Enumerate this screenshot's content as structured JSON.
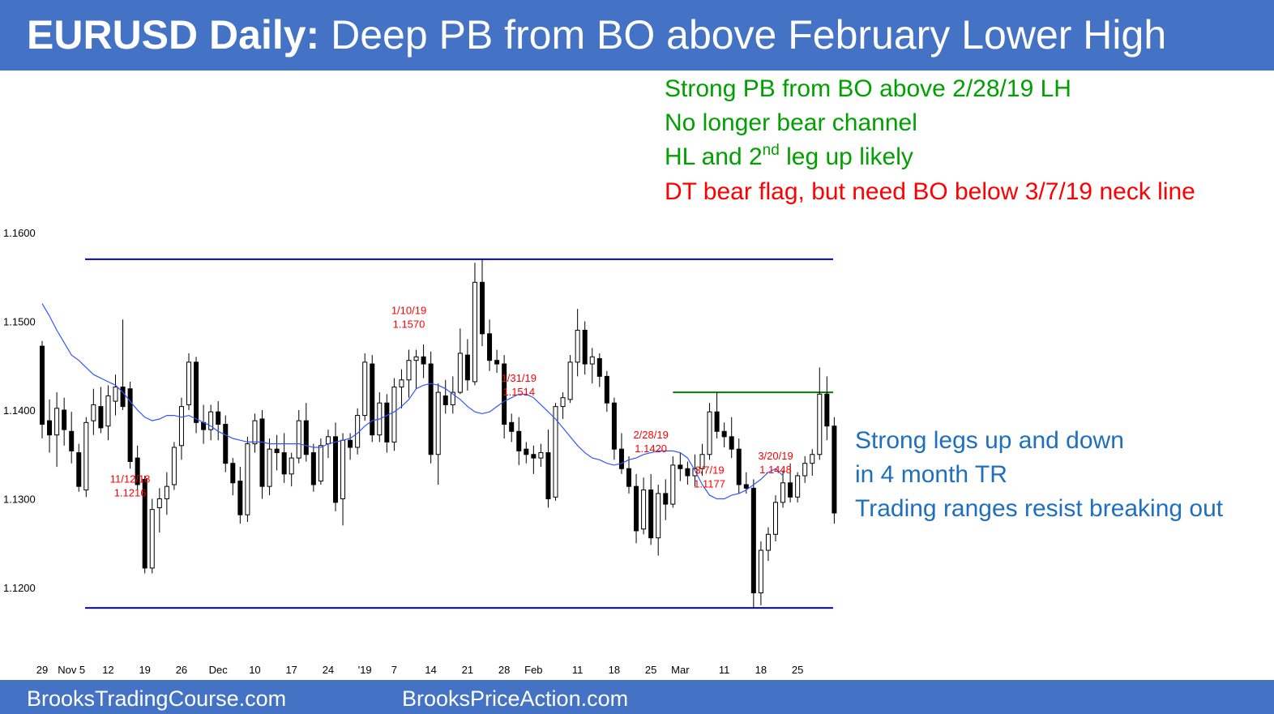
{
  "header": {
    "title_bold": "EURUSD Daily:",
    "title_rest": "Deep PB from BO above February Lower High"
  },
  "footer": {
    "left": "BrooksTradingCourse.com",
    "center": "BrooksPriceAction.com"
  },
  "notes": {
    "green": [
      "Strong PB from BO above 2/28/19 LH",
      "No longer bear channel"
    ],
    "green3_pre": "HL and 2",
    "green3_sup": "nd",
    "green3_post": " leg up likely",
    "red": "DT bear flag, but need BO below 3/7/19 neck line",
    "blue": [
      "Strong legs up and down",
      "in 4 month TR",
      "Trading ranges resist breaking out"
    ]
  },
  "colors": {
    "banner": "#4472c4",
    "range_line": "#0000e0",
    "lower_high_line": "#008000",
    "moving_average": "#3355ff",
    "label_red": "#ff0000",
    "note_green": "#00a000",
    "note_blue": "#1f6fc0"
  },
  "chart_data": {
    "type": "candlestick",
    "instrument": "EURUSD",
    "timeframe": "Daily",
    "ylim": [
      1.1165,
      1.162
    ],
    "y_ticks": [
      "1.1200",
      "1.1300",
      "1.1400",
      "1.1500",
      "1.1600"
    ],
    "x_tick_labels": [
      "29",
      "Nov 5",
      "12",
      "19",
      "26",
      "Dec",
      "10",
      "17",
      "24",
      "'19",
      "7",
      "14",
      "21",
      "28",
      "Feb",
      "11",
      "18",
      "25",
      "Mar",
      "11",
      "18",
      "25"
    ],
    "x_tick_positions": [
      0,
      4,
      9,
      14,
      19,
      24,
      29,
      34,
      39,
      44,
      48,
      53,
      58,
      63,
      67,
      73,
      78,
      83,
      87,
      93,
      98,
      103
    ],
    "horizontal_lines": [
      {
        "type": "range_top",
        "value": 1.157,
        "from_bar": 6,
        "to_bar": 105
      },
      {
        "type": "range_bottom",
        "value": 1.1177,
        "from_bar": 6,
        "to_bar": 105
      },
      {
        "type": "lower_high",
        "value": 1.142,
        "from_bar": 86,
        "to_bar": 105
      }
    ],
    "annotations": [
      {
        "date": "11/12/18",
        "price": "1.1216",
        "bar": 12
      },
      {
        "date": "1/10/19",
        "price": "1.1570",
        "bar": 50
      },
      {
        "date": "1/31/19",
        "price": "1.1514",
        "bar": 65
      },
      {
        "date": "2/28/19",
        "price": "1.1420",
        "bar": 83
      },
      {
        "date": "3/7/19",
        "price": "1.1177",
        "bar": 91
      },
      {
        "date": "3/20/19",
        "price": "1.1448",
        "bar": 100
      }
    ],
    "candles": [
      [
        1.1472,
        1.1478,
        1.1368,
        1.1384
      ],
      [
        1.1388,
        1.1412,
        1.1352,
        1.1372
      ],
      [
        1.1372,
        1.142,
        1.1336,
        1.1402
      ],
      [
        1.14,
        1.1414,
        1.136,
        1.1378
      ],
      [
        1.1376,
        1.1398,
        1.134,
        1.1354
      ],
      [
        1.1352,
        1.1362,
        1.1308,
        1.1314
      ],
      [
        1.131,
        1.1392,
        1.1302,
        1.1386
      ],
      [
        1.1388,
        1.1424,
        1.1372,
        1.1406
      ],
      [
        1.1404,
        1.1426,
        1.1374,
        1.138
      ],
      [
        1.1382,
        1.1428,
        1.1366,
        1.1416
      ],
      [
        1.141,
        1.144,
        1.1394,
        1.1426
      ],
      [
        1.1426,
        1.1502,
        1.14,
        1.1404
      ],
      [
        1.1424,
        1.1432,
        1.1334,
        1.1342
      ],
      [
        1.1346,
        1.136,
        1.131,
        1.1316
      ],
      [
        1.1322,
        1.1326,
        1.1216,
        1.1222
      ],
      [
        1.1222,
        1.13,
        1.1216,
        1.1288
      ],
      [
        1.129,
        1.1312,
        1.1262,
        1.13
      ],
      [
        1.13,
        1.133,
        1.1282,
        1.1314
      ],
      [
        1.1316,
        1.1364,
        1.131,
        1.1358
      ],
      [
        1.136,
        1.1414,
        1.1344,
        1.1404
      ],
      [
        1.1406,
        1.1464,
        1.14,
        1.1454
      ],
      [
        1.1454,
        1.146,
        1.1374,
        1.1386
      ],
      [
        1.1386,
        1.1406,
        1.1362,
        1.1378
      ],
      [
        1.1378,
        1.1406,
        1.1366,
        1.1398
      ],
      [
        1.1398,
        1.141,
        1.1366,
        1.1384
      ],
      [
        1.1384,
        1.1394,
        1.133,
        1.134
      ],
      [
        1.134,
        1.1346,
        1.1304,
        1.1318
      ],
      [
        1.132,
        1.1336,
        1.1272,
        1.1282
      ],
      [
        1.1282,
        1.137,
        1.1274,
        1.1362
      ],
      [
        1.1362,
        1.1396,
        1.1352,
        1.1388
      ],
      [
        1.139,
        1.14,
        1.13,
        1.1314
      ],
      [
        1.1314,
        1.1368,
        1.1304,
        1.1356
      ],
      [
        1.1356,
        1.1372,
        1.1332,
        1.1352
      ],
      [
        1.1352,
        1.1374,
        1.1318,
        1.1328
      ],
      [
        1.1328,
        1.1352,
        1.1314,
        1.1346
      ],
      [
        1.1346,
        1.14,
        1.134,
        1.1388
      ],
      [
        1.1388,
        1.1408,
        1.1342,
        1.135
      ],
      [
        1.1352,
        1.1362,
        1.1308,
        1.1316
      ],
      [
        1.132,
        1.1368,
        1.1316,
        1.136
      ],
      [
        1.1362,
        1.1378,
        1.1346,
        1.137
      ],
      [
        1.137,
        1.1386,
        1.1286,
        1.1296
      ],
      [
        1.13,
        1.1374,
        1.127,
        1.1366
      ],
      [
        1.1366,
        1.1374,
        1.1344,
        1.1358
      ],
      [
        1.1358,
        1.1402,
        1.135,
        1.1394
      ],
      [
        1.1394,
        1.1464,
        1.1388,
        1.1454
      ],
      [
        1.1452,
        1.1462,
        1.1364,
        1.1372
      ],
      [
        1.1372,
        1.142,
        1.1364,
        1.1408
      ],
      [
        1.1408,
        1.1418,
        1.1352,
        1.1364
      ],
      [
        1.1364,
        1.1436,
        1.1354,
        1.1426
      ],
      [
        1.1426,
        1.1446,
        1.1402,
        1.1434
      ],
      [
        1.1434,
        1.1468,
        1.1414,
        1.1456
      ],
      [
        1.1456,
        1.1468,
        1.1424,
        1.146
      ],
      [
        1.146,
        1.1474,
        1.1436,
        1.1452
      ],
      [
        1.1452,
        1.1466,
        1.134,
        1.135
      ],
      [
        1.135,
        1.143,
        1.1316,
        1.142
      ],
      [
        1.1416,
        1.1434,
        1.1396,
        1.1406
      ],
      [
        1.1406,
        1.1438,
        1.1396,
        1.142
      ],
      [
        1.142,
        1.1492,
        1.1418,
        1.1464
      ],
      [
        1.1462,
        1.148,
        1.1422,
        1.1434
      ],
      [
        1.1432,
        1.1566,
        1.1428,
        1.1544
      ],
      [
        1.1544,
        1.157,
        1.1472,
        1.1486
      ],
      [
        1.1486,
        1.1502,
        1.1444,
        1.1456
      ],
      [
        1.1456,
        1.1468,
        1.1442,
        1.1452
      ],
      [
        1.1452,
        1.1462,
        1.1368,
        1.1384
      ],
      [
        1.1386,
        1.1396,
        1.1364,
        1.1376
      ],
      [
        1.1376,
        1.1392,
        1.1338,
        1.1354
      ],
      [
        1.1356,
        1.1364,
        1.134,
        1.135
      ],
      [
        1.135,
        1.136,
        1.1328,
        1.1346
      ],
      [
        1.1346,
        1.1362,
        1.1336,
        1.1352
      ],
      [
        1.1352,
        1.1378,
        1.129,
        1.13
      ],
      [
        1.1302,
        1.1408,
        1.1298,
        1.1404
      ],
      [
        1.1404,
        1.142,
        1.139,
        1.1414
      ],
      [
        1.1412,
        1.1462,
        1.1408,
        1.1454
      ],
      [
        1.1454,
        1.1514,
        1.1438,
        1.149
      ],
      [
        1.149,
        1.15,
        1.144,
        1.1452
      ],
      [
        1.1452,
        1.147,
        1.143,
        1.146
      ],
      [
        1.1458,
        1.1464,
        1.1426,
        1.1438
      ],
      [
        1.1438,
        1.1444,
        1.1398,
        1.1408
      ],
      [
        1.1408,
        1.1414,
        1.1344,
        1.1356
      ],
      [
        1.1356,
        1.1374,
        1.1328,
        1.1334
      ],
      [
        1.1334,
        1.1348,
        1.1306,
        1.1314
      ],
      [
        1.1314,
        1.1328,
        1.125,
        1.1264
      ],
      [
        1.1266,
        1.1324,
        1.126,
        1.131
      ],
      [
        1.131,
        1.1328,
        1.1248,
        1.1256
      ],
      [
        1.1256,
        1.1316,
        1.1236,
        1.1306
      ],
      [
        1.1306,
        1.1322,
        1.1276,
        1.1294
      ],
      [
        1.1294,
        1.1348,
        1.129,
        1.1338
      ],
      [
        1.1338,
        1.1352,
        1.132,
        1.1334
      ],
      [
        1.1334,
        1.1342,
        1.1316,
        1.1326
      ],
      [
        1.1326,
        1.135,
        1.1314,
        1.1334
      ],
      [
        1.1334,
        1.1362,
        1.1326,
        1.135
      ],
      [
        1.135,
        1.1408,
        1.1344,
        1.1398
      ],
      [
        1.1398,
        1.142,
        1.1368,
        1.1376
      ],
      [
        1.1376,
        1.1386,
        1.1358,
        1.137
      ],
      [
        1.137,
        1.1392,
        1.1346,
        1.1356
      ],
      [
        1.1356,
        1.1368,
        1.1306,
        1.1316
      ],
      [
        1.1316,
        1.133,
        1.1306,
        1.1312
      ],
      [
        1.1312,
        1.1322,
        1.1177,
        1.1194
      ],
      [
        1.1194,
        1.1252,
        1.118,
        1.1242
      ],
      [
        1.1242,
        1.1268,
        1.123,
        1.126
      ],
      [
        1.126,
        1.1304,
        1.1252,
        1.1296
      ],
      [
        1.1296,
        1.1332,
        1.129,
        1.1318
      ],
      [
        1.1318,
        1.134,
        1.1296,
        1.1302
      ],
      [
        1.1302,
        1.133,
        1.1296,
        1.1326
      ],
      [
        1.1326,
        1.1348,
        1.1318,
        1.134
      ],
      [
        1.134,
        1.1356,
        1.1326,
        1.135
      ],
      [
        1.135,
        1.1448,
        1.1344,
        1.1418
      ],
      [
        1.1418,
        1.1438,
        1.1366,
        1.1382
      ],
      [
        1.1382,
        1.1392,
        1.1272,
        1.1284
      ]
    ],
    "moving_average": [
      1.152,
      1.1506,
      1.149,
      1.1476,
      1.1462,
      1.1456,
      1.1448,
      1.144,
      1.1436,
      1.1432,
      1.1428,
      1.142,
      1.141,
      1.14,
      1.1392,
      1.1388,
      1.139,
      1.1394,
      1.1394,
      1.1392,
      1.1394,
      1.139,
      1.1386,
      1.1382,
      1.1376,
      1.1372,
      1.1368,
      1.1366,
      1.1364,
      1.1364,
      1.1364,
      1.1362,
      1.1362,
      1.1362,
      1.1362,
      1.1362,
      1.136,
      1.1358,
      1.1358,
      1.1362,
      1.1364,
      1.1366,
      1.1368,
      1.1374,
      1.1382,
      1.1388,
      1.139,
      1.1394,
      1.1398,
      1.1404,
      1.1412,
      1.1424,
      1.1428,
      1.143,
      1.1428,
      1.1424,
      1.1418,
      1.1412,
      1.1404,
      1.1398,
      1.1396,
      1.1398,
      1.1404,
      1.141,
      1.1414,
      1.1418,
      1.1418,
      1.1414,
      1.1406,
      1.1398,
      1.139,
      1.138,
      1.137,
      1.136,
      1.1352,
      1.1346,
      1.1344,
      1.134,
      1.1338,
      1.134,
      1.1344,
      1.1346,
      1.135,
      1.1352,
      1.1354,
      1.1354,
      1.1354,
      1.1352,
      1.1346,
      1.1332,
      1.1316,
      1.1304,
      1.13,
      1.13,
      1.1304,
      1.1306,
      1.131,
      1.1316,
      1.1322,
      1.133,
      1.1334,
      1.1326
    ]
  }
}
